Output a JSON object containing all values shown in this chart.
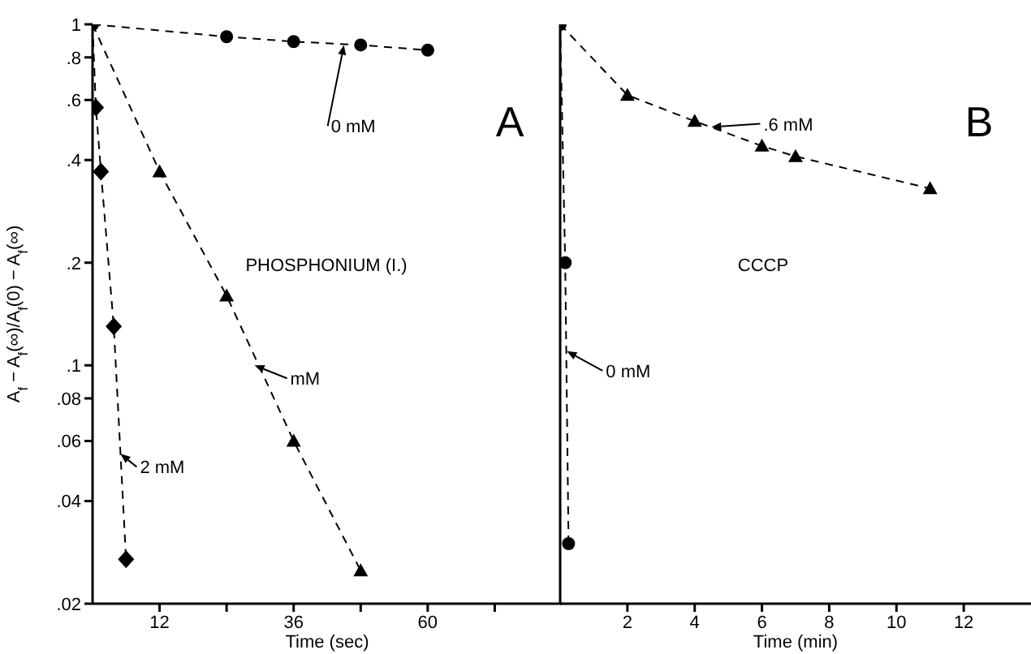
{
  "chart_data": [
    {
      "type": "line",
      "xlabel": "Time (sec)",
      "ylabel": "A$_{f}$ − A$_{f}$(∞)/A$_{f}$(0) − A$_{f}$(∞)",
      "log": "y",
      "line_style": "dashed",
      "xlim": [
        0,
        84
      ],
      "xticks": [
        12,
        {
          "value": 24,
          "label": null
        },
        36,
        {
          "value": 48,
          "label": null
        },
        60,
        {
          "value": 72,
          "label": null
        }
      ],
      "ylim": [
        0.02,
        1
      ],
      "yticks": [
        1,
        {
          "value": 0.8,
          "label": ".8"
        },
        {
          "value": 0.6,
          "label": ".6"
        },
        {
          "value": 0.4,
          "label": ".4"
        },
        {
          "value": 0.2,
          "label": ".2"
        },
        {
          "value": 0.1,
          "label": ".1"
        },
        {
          "value": 0.08,
          "label": ".08"
        },
        {
          "value": 0.06,
          "label": ".06"
        },
        {
          "value": 0.04,
          "label": ".04"
        },
        {
          "value": 0.02,
          "label": ".02"
        }
      ],
      "annotations": [
        "A",
        "PHOSPHONIUM (I.)",
        {
          "text": "0 mM",
          "x": 45,
          "y": 0.87
        },
        {
          "text": "mM",
          "x": 29,
          "y": 0.1
        },
        {
          "text": "2 mM",
          "x": 5,
          "y": 0.055
        }
      ],
      "series": [
        {
          "color": "#000000",
          "marker": "circle",
          "x": [
            0,
            24,
            36,
            48,
            60
          ],
          "values": [
            1,
            0.92,
            0.89,
            0.87,
            0.84
          ]
        },
        {
          "color": "#000000",
          "marker": "triangle",
          "x": [
            0,
            12,
            24,
            36,
            48
          ],
          "values": [
            1,
            0.37,
            0.16,
            0.06,
            0.025
          ]
        },
        {
          "color": "#000000",
          "marker": "diamond",
          "x": [
            0,
            0.6,
            1.5,
            3.8,
            6
          ],
          "values": [
            1,
            0.57,
            0.37,
            0.13,
            0.027
          ]
        }
      ]
    },
    {
      "type": "line",
      "xlabel": "Time (min)",
      "log": "y",
      "line_style": "dashed",
      "tick_labels": "x",
      "xlim": [
        0,
        14
      ],
      "xticks": [
        2,
        4,
        6,
        8,
        10,
        12
      ],
      "ylim": [
        0.02,
        1
      ],
      "yticks": [
        {
          "value": 1,
          "label": null
        },
        {
          "value": 0.8,
          "label": null
        },
        {
          "value": 0.6,
          "label": null
        },
        {
          "value": 0.4,
          "label": null
        },
        {
          "value": 0.2,
          "label": null
        },
        {
          "value": 0.1,
          "label": null
        },
        {
          "value": 0.08,
          "label": null
        },
        {
          "value": 0.06,
          "label": null
        },
        {
          "value": 0.04,
          "label": null
        },
        {
          "value": 0.02,
          "label": null
        }
      ],
      "annotations": [
        "B",
        "CCCP",
        {
          "text": "0 mM",
          "x": 0.2,
          "y": 0.11
        },
        {
          "text": ".6 mM",
          "x": 4.5,
          "y": 0.5
        }
      ],
      "series": [
        {
          "color": "#000000",
          "marker": "circle",
          "x": [
            0,
            0.15,
            0.25
          ],
          "values": [
            1,
            0.2,
            0.03
          ]
        },
        {
          "color": "#000000",
          "marker": "triangle",
          "x": [
            0,
            2,
            4,
            6,
            7,
            11
          ],
          "values": [
            1,
            0.62,
            0.52,
            0.44,
            0.41,
            0.33
          ]
        }
      ]
    }
  ]
}
